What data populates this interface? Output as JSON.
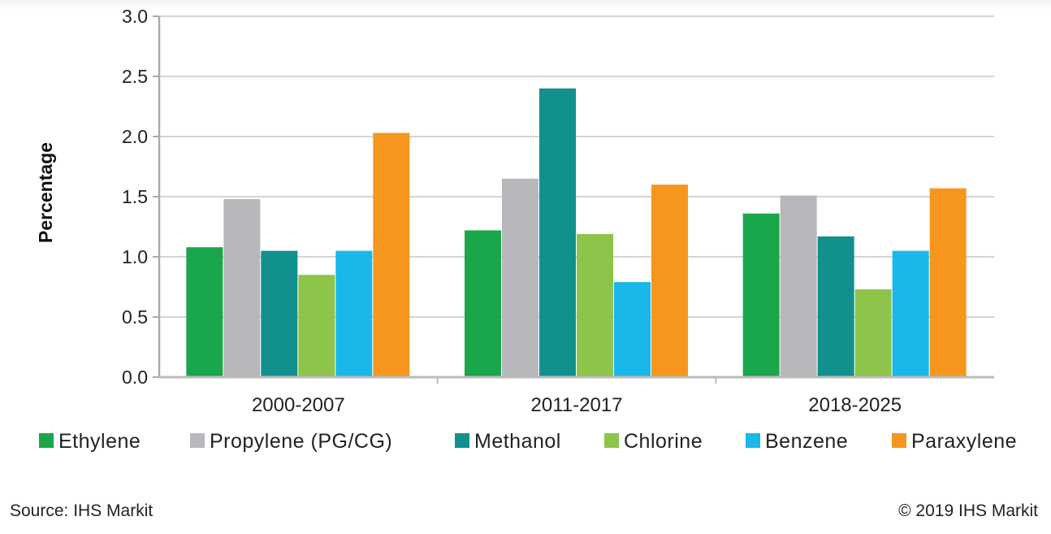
{
  "chart_data": {
    "type": "bar",
    "ylabel": "Percentage",
    "xlabel": "",
    "ylim": [
      0,
      3.0
    ],
    "y_ticks": [
      "0.0",
      "0.5",
      "1.0",
      "1.5",
      "2.0",
      "2.5",
      "3.0"
    ],
    "grid": true,
    "legend_position": "bottom",
    "categories": [
      "2000-2007",
      "2011-2017",
      "2018-2025"
    ],
    "series": [
      {
        "name": "Ethylene",
        "color": "#1aa64b",
        "values": [
          1.08,
          1.22,
          1.36
        ]
      },
      {
        "name": "Propylene (PG/CG)",
        "color": "#b7b8bc",
        "values": [
          1.48,
          1.65,
          1.51
        ]
      },
      {
        "name": "Methanol",
        "color": "#12908e",
        "values": [
          1.05,
          2.4,
          1.17
        ]
      },
      {
        "name": "Chlorine",
        "color": "#8cc54a",
        "values": [
          0.85,
          1.19,
          0.73
        ]
      },
      {
        "name": "Benzene",
        "color": "#19b7ea",
        "values": [
          1.05,
          0.79,
          1.05
        ]
      },
      {
        "name": "Paraxylene",
        "color": "#f6961f",
        "values": [
          2.03,
          1.6,
          1.57
        ]
      }
    ]
  },
  "footer": {
    "source": "Source: IHS Markit",
    "copyright": "© 2019 IHS Markit"
  }
}
